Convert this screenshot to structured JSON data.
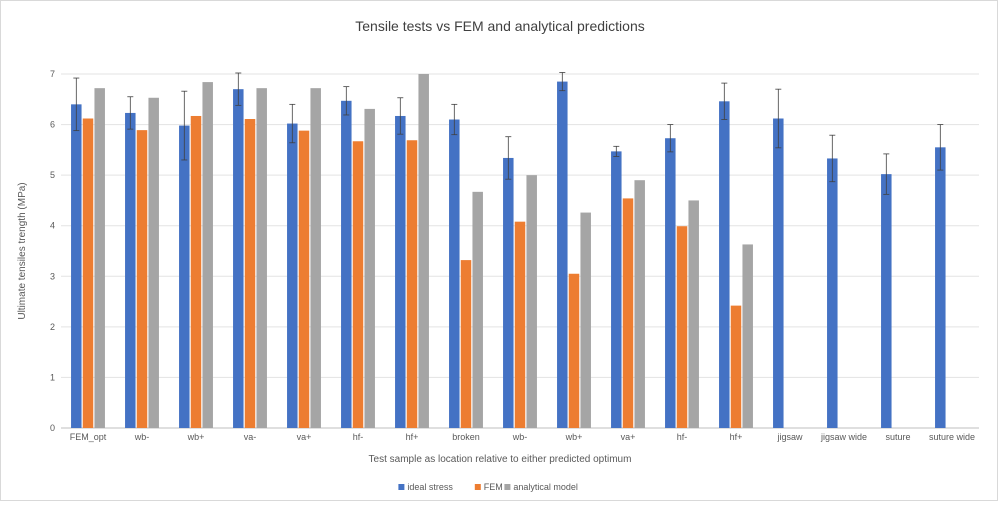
{
  "chart_data": {
    "type": "bar",
    "title": "Tensile tests vs FEM and analytical predictions",
    "xlabel": "Test sample as location relative to either predicted optimum",
    "ylabel": "Ultimate tensiles trength (MPa)",
    "ylim": [
      0,
      7
    ],
    "yticks": [
      0,
      1,
      2,
      3,
      4,
      5,
      6,
      7
    ],
    "grid": true,
    "legend_position": "bottom",
    "categories": [
      "FEM_opt",
      "wb-",
      "wb+",
      "va-",
      "va+",
      "hf-",
      "hf+",
      "broken",
      "wb-",
      "wb+",
      "va+",
      "hf-",
      "hf+",
      "jigsaw",
      "jigsaw wide",
      "suture",
      "suture wide"
    ],
    "series": [
      {
        "name": "ideal stress",
        "color": "#4472c4",
        "values": [
          6.4,
          6.23,
          5.98,
          6.7,
          6.02,
          6.47,
          6.17,
          6.1,
          5.34,
          6.85,
          5.47,
          5.73,
          6.46,
          6.12,
          5.33,
          5.02,
          5.55
        ],
        "error": [
          0.52,
          0.32,
          0.68,
          0.32,
          0.38,
          0.28,
          0.36,
          0.3,
          0.42,
          0.18,
          0.1,
          0.27,
          0.36,
          0.58,
          0.46,
          0.4,
          0.45
        ]
      },
      {
        "name": "FEM",
        "color": "#ed7d31",
        "values": [
          6.12,
          5.89,
          6.17,
          6.11,
          5.88,
          5.67,
          5.69,
          3.32,
          4.08,
          3.05,
          4.54,
          3.99,
          2.42,
          null,
          null,
          null,
          null
        ]
      },
      {
        "name": "analytical model",
        "color": "#a5a5a5",
        "values": [
          6.72,
          6.53,
          6.84,
          6.72,
          6.72,
          6.31,
          7.0,
          4.67,
          5.0,
          4.26,
          4.9,
          4.5,
          3.63,
          null,
          null,
          null,
          null
        ]
      }
    ]
  }
}
